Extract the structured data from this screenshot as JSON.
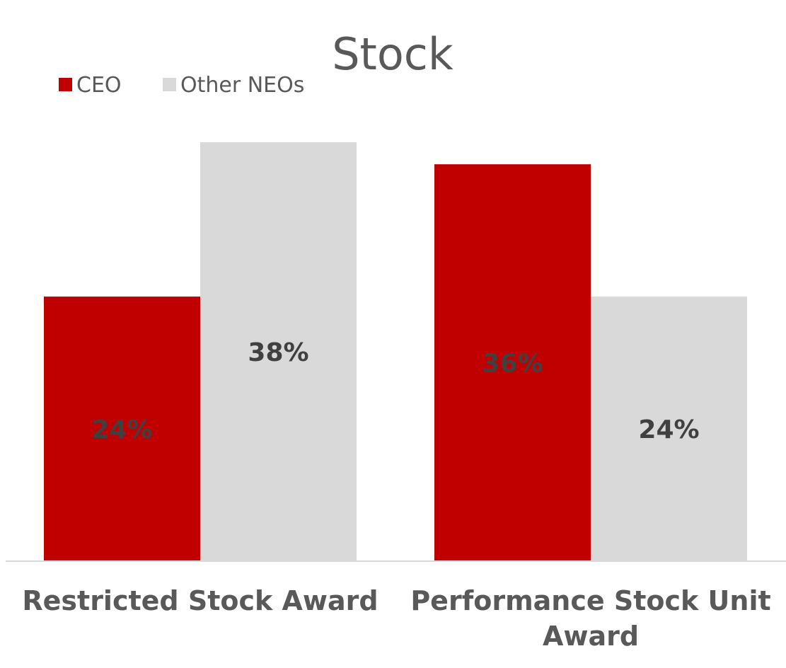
{
  "chart_data": {
    "type": "bar",
    "title": "Stock",
    "categories": [
      [
        "Restricted Stock Award"
      ],
      [
        "Performance Stock Unit",
        "Award"
      ]
    ],
    "series": [
      {
        "name": "CEO",
        "values": [
          24,
          36
        ],
        "labels": [
          "24%",
          "36%"
        ],
        "color": "#C00000"
      },
      {
        "name": "Other NEOs",
        "values": [
          38,
          24
        ],
        "labels": [
          "38%",
          "24%"
        ],
        "color": "#D9D9D9"
      }
    ],
    "ylim": [
      0,
      38
    ],
    "grid": false,
    "legend_position": "top-left",
    "label_color": "#404040",
    "text_color": "#595959",
    "axis_color": "#D9D9D9"
  }
}
